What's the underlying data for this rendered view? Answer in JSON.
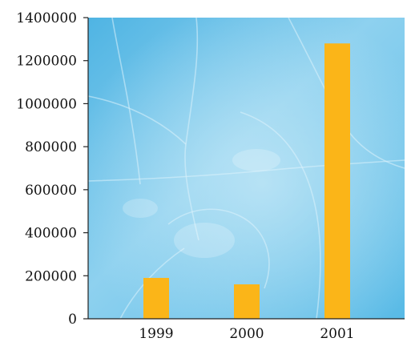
{
  "chart_data": {
    "type": "bar",
    "title": "",
    "xlabel": "",
    "ylabel": "",
    "categories": [
      "1999",
      "2000",
      "2001"
    ],
    "values": [
      190000,
      160000,
      1280000
    ],
    "ylim": [
      0,
      1400000
    ],
    "y_ticks": [
      0,
      200000,
      400000,
      600000,
      800000,
      1000000,
      1200000,
      1400000
    ],
    "y_tick_labels": [
      "0",
      "200000",
      "400000",
      "600000",
      "800000",
      "1000000",
      "1200000",
      "1400000"
    ],
    "grid": false,
    "legend": "none",
    "colors": {
      "bar": "#FBB518",
      "background": "#5CBCE6",
      "axis": "#222222",
      "text": "#111111"
    }
  }
}
